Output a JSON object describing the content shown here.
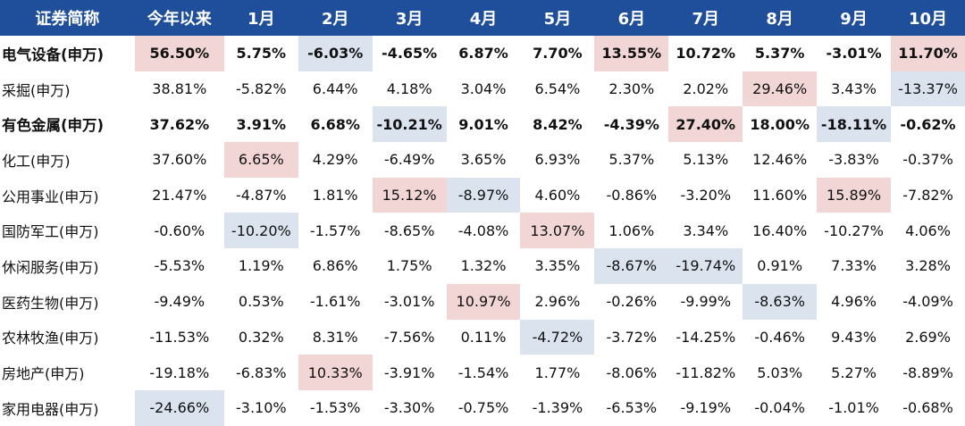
{
  "chart_data": {
    "type": "table",
    "columns": [
      "证券简称",
      "今年以来",
      "1月",
      "2月",
      "3月",
      "4月",
      "5月",
      "6月",
      "7月",
      "8月",
      "9月",
      "10月"
    ],
    "rows": [
      {
        "name": "电气设备(申万)",
        "bold": true,
        "cells": [
          "56.50%",
          "5.75%",
          "-6.03%",
          "-4.65%",
          "6.87%",
          "7.70%",
          "13.55%",
          "10.72%",
          "5.37%",
          "-3.01%",
          "11.70%"
        ],
        "highlights": [
          "pink",
          "",
          "blue",
          "",
          "",
          "",
          "pink",
          "",
          "",
          "",
          "pink"
        ]
      },
      {
        "name": "采掘(申万)",
        "bold": false,
        "cells": [
          "38.81%",
          "-5.82%",
          "6.44%",
          "4.18%",
          "3.04%",
          "6.54%",
          "2.30%",
          "2.02%",
          "29.46%",
          "3.43%",
          "-13.37%"
        ],
        "highlights": [
          "",
          "",
          "",
          "",
          "",
          "",
          "",
          "",
          "pink",
          "",
          "blue"
        ]
      },
      {
        "name": "有色金属(申万)",
        "bold": true,
        "cells": [
          "37.62%",
          "3.91%",
          "6.68%",
          "-10.21%",
          "9.01%",
          "8.42%",
          "-4.39%",
          "27.40%",
          "18.00%",
          "-18.11%",
          "-0.62%"
        ],
        "highlights": [
          "",
          "",
          "",
          "blue",
          "",
          "",
          "",
          "pink",
          "",
          "blue",
          ""
        ]
      },
      {
        "name": "化工(申万)",
        "bold": false,
        "cells": [
          "37.60%",
          "6.65%",
          "4.29%",
          "-6.49%",
          "3.65%",
          "6.93%",
          "5.37%",
          "5.13%",
          "12.46%",
          "-3.83%",
          "-0.37%"
        ],
        "highlights": [
          "",
          "pink",
          "",
          "",
          "",
          "",
          "",
          "",
          "",
          "",
          ""
        ]
      },
      {
        "name": "公用事业(申万)",
        "bold": false,
        "cells": [
          "21.47%",
          "-4.87%",
          "1.81%",
          "15.12%",
          "-8.97%",
          "4.60%",
          "-0.86%",
          "-3.20%",
          "11.60%",
          "15.89%",
          "-7.82%"
        ],
        "highlights": [
          "",
          "",
          "",
          "pink",
          "blue",
          "",
          "",
          "",
          "",
          "pink",
          ""
        ]
      },
      {
        "name": "国防军工(申万)",
        "bold": false,
        "cells": [
          "-0.60%",
          "-10.20%",
          "-1.57%",
          "-8.65%",
          "-4.08%",
          "13.07%",
          "1.06%",
          "3.34%",
          "16.40%",
          "-10.27%",
          "4.06%"
        ],
        "highlights": [
          "",
          "blue",
          "",
          "",
          "",
          "pink",
          "",
          "",
          "",
          "",
          ""
        ]
      },
      {
        "name": "休闲服务(申万)",
        "bold": false,
        "cells": [
          "-5.53%",
          "1.19%",
          "6.86%",
          "1.75%",
          "1.32%",
          "3.35%",
          "-8.67%",
          "-19.74%",
          "0.91%",
          "7.33%",
          "3.28%"
        ],
        "highlights": [
          "",
          "",
          "",
          "",
          "",
          "",
          "blue",
          "blue",
          "",
          "",
          ""
        ]
      },
      {
        "name": "医药生物(申万)",
        "bold": false,
        "cells": [
          "-9.49%",
          "0.53%",
          "-1.61%",
          "-3.01%",
          "10.97%",
          "2.96%",
          "-0.26%",
          "-9.99%",
          "-8.63%",
          "4.96%",
          "-4.09%"
        ],
        "highlights": [
          "",
          "",
          "",
          "",
          "pink",
          "",
          "",
          "",
          "blue",
          "",
          ""
        ]
      },
      {
        "name": "农林牧渔(申万)",
        "bold": false,
        "cells": [
          "-11.53%",
          "0.32%",
          "8.31%",
          "-7.56%",
          "0.11%",
          "-4.72%",
          "-3.72%",
          "-14.25%",
          "-0.46%",
          "9.43%",
          "2.69%"
        ],
        "highlights": [
          "",
          "",
          "",
          "",
          "",
          "blue",
          "",
          "",
          "",
          "",
          ""
        ]
      },
      {
        "name": "房地产(申万)",
        "bold": false,
        "cells": [
          "-19.18%",
          "-6.83%",
          "10.33%",
          "-3.91%",
          "-1.54%",
          "1.77%",
          "-8.06%",
          "-11.82%",
          "5.03%",
          "5.27%",
          "-8.89%"
        ],
        "highlights": [
          "",
          "",
          "pink",
          "",
          "",
          "",
          "",
          "",
          "",
          "",
          ""
        ]
      },
      {
        "name": "家用电器(申万)",
        "bold": false,
        "cells": [
          "-24.66%",
          "-3.10%",
          "-1.53%",
          "-3.30%",
          "-0.75%",
          "-1.39%",
          "-6.53%",
          "-9.19%",
          "-0.04%",
          "-1.01%",
          "-0.68%"
        ],
        "highlights": [
          "blue",
          "",
          "",
          "",
          "",
          "",
          "",
          "",
          "",
          "",
          ""
        ]
      }
    ]
  },
  "colors": {
    "header_bg": "#1f4e9a",
    "header_text": "#ffffff",
    "highlight_pink": "#f2d6d6",
    "highlight_blue": "#dbe3ef"
  }
}
